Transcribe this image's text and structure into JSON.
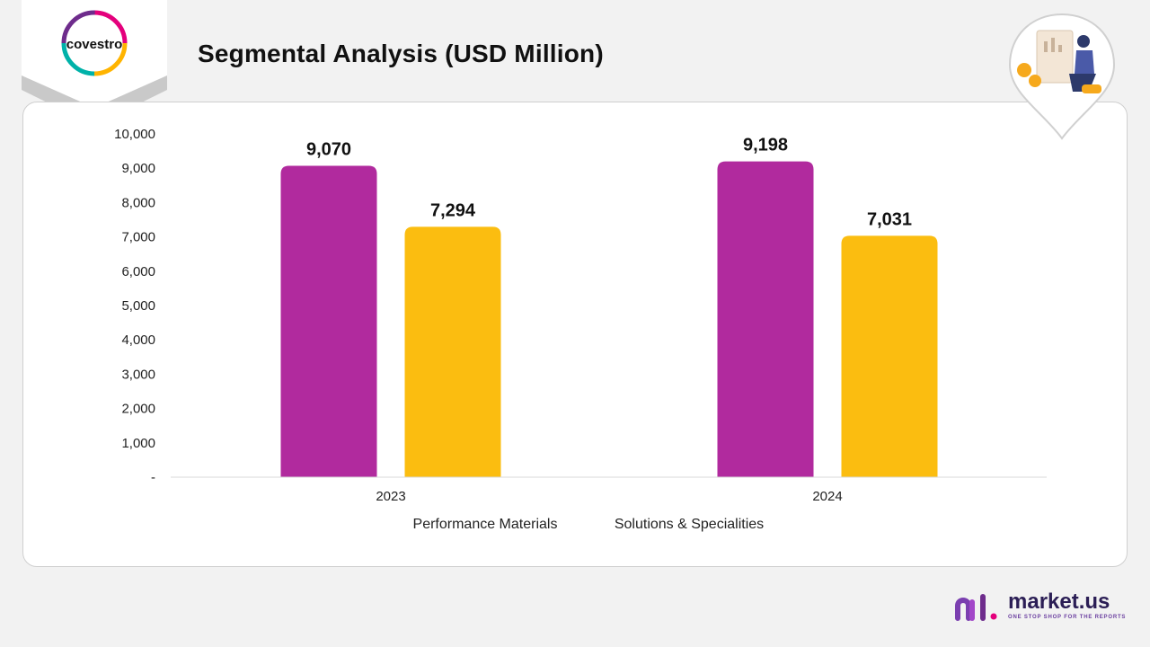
{
  "header": {
    "title": "Segmental Analysis (USD Million)",
    "logo_text": "covestro"
  },
  "brand": {
    "name": "market.us",
    "tagline": "ONE STOP SHOP FOR THE REPORTS"
  },
  "colors": {
    "performance": "#b12a9e",
    "solutions": "#fbbd10",
    "background": "#f2f2f2"
  },
  "chart_data": {
    "type": "bar",
    "title": "Segmental Analysis (USD Million)",
    "categories": [
      "2023",
      "2024"
    ],
    "series": [
      {
        "name": "Performance Materials",
        "values": [
          9070,
          9198
        ],
        "labels": [
          "9,070",
          "9,198"
        ]
      },
      {
        "name": "Solutions & Specialities",
        "values": [
          7294,
          7031
        ],
        "labels": [
          "7,294",
          "7,031"
        ]
      }
    ],
    "ylim": [
      0,
      10000
    ],
    "yticks": [
      {
        "value": 0,
        "label": "-"
      },
      {
        "value": 1000,
        "label": "1,000"
      },
      {
        "value": 2000,
        "label": "2,000"
      },
      {
        "value": 3000,
        "label": "3,000"
      },
      {
        "value": 4000,
        "label": "4,000"
      },
      {
        "value": 5000,
        "label": "5,000"
      },
      {
        "value": 6000,
        "label": "6,000"
      },
      {
        "value": 7000,
        "label": "7,000"
      },
      {
        "value": 8000,
        "label": "8,000"
      },
      {
        "value": 9000,
        "label": "9,000"
      },
      {
        "value": 10000,
        "label": "10,000"
      }
    ],
    "grid": false,
    "legend_position": "bottom"
  }
}
